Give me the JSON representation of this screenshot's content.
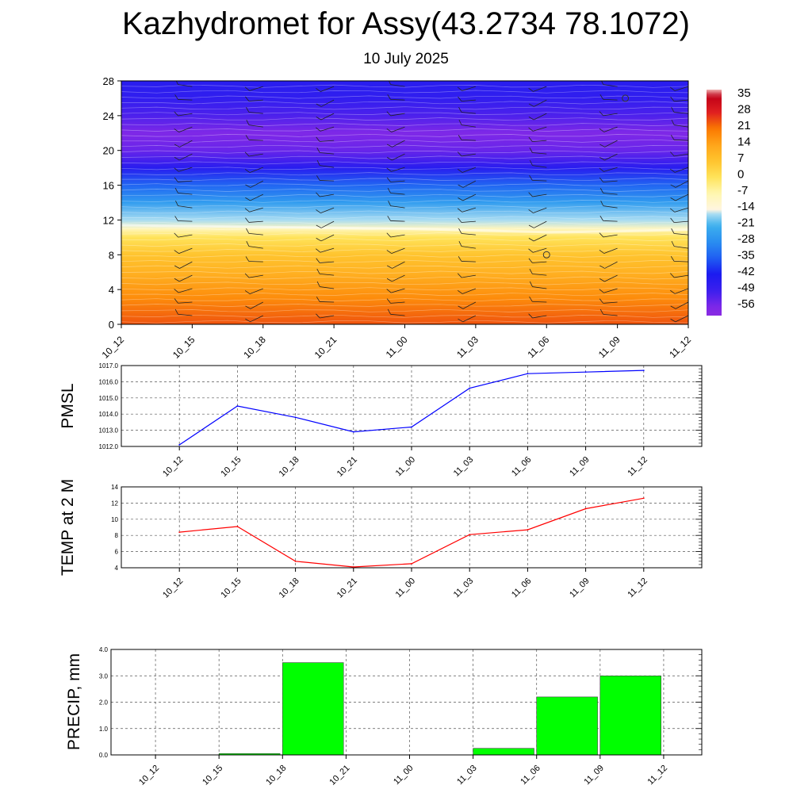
{
  "title": "Kazhydromet for Assy(43.2734 78.1072)",
  "subtitle": "10 July 2025",
  "chart_data": [
    {
      "type": "heatmap",
      "x_ticks": [
        "10_12",
        "10_15",
        "10_18",
        "10_21",
        "11_00",
        "11_03",
        "11_06",
        "11_09",
        "11_12"
      ],
      "y_ticks": [
        "0",
        "4",
        "8",
        "12",
        "16",
        "20",
        "24",
        "28"
      ],
      "ylim": [
        0,
        28
      ],
      "colorbar_labels": [
        "35",
        "28",
        "21",
        "14",
        "7",
        "0",
        "-7",
        "-14",
        "-21",
        "-28",
        "-35",
        "-42",
        "-49",
        "-56"
      ],
      "colorbar_range": [
        -60,
        38
      ],
      "field_profile": [
        {
          "y": 0,
          "v": 24
        },
        {
          "y": 3,
          "v": 18
        },
        {
          "y": 6,
          "v": 11
        },
        {
          "y": 8,
          "v": 7
        },
        {
          "y": 10,
          "v": 0
        },
        {
          "y": 11,
          "v": -9
        },
        {
          "y": 12,
          "v": -16
        },
        {
          "y": 14,
          "v": -25
        },
        {
          "y": 16,
          "v": -34
        },
        {
          "y": 18,
          "v": -45
        },
        {
          "y": 20,
          "v": -54
        },
        {
          "y": 22,
          "v": -57
        },
        {
          "y": 24,
          "v": -51
        },
        {
          "y": 26,
          "v": -47
        },
        {
          "y": 28,
          "v": -45
        }
      ],
      "freezing_level": [
        11.4,
        11.3,
        11.2,
        11.1,
        11.0,
        10.8,
        10.6,
        10.7,
        10.9
      ],
      "grid": false,
      "colors": {
        "cold_top": "#7b27e8",
        "cold": "#1b1bf0",
        "cool": "#3db0ee",
        "pale": "#fff7b0",
        "warm": "#ffa51a",
        "hot": "#fb7a00"
      }
    },
    {
      "type": "line",
      "ylabel": "PMSL",
      "x": [
        "10_12",
        "10_15",
        "10_18",
        "10_21",
        "11_00",
        "11_03",
        "11_06",
        "11_09",
        "11_12"
      ],
      "series": [
        {
          "values": [
            1012.1,
            1014.5,
            1013.8,
            1012.9,
            1013.2,
            1015.6,
            1016.5,
            1016.6,
            1016.7
          ],
          "color": "#0000ff"
        }
      ],
      "ylim": [
        1012.0,
        1017.0
      ],
      "y_ticks": [
        "1012.0",
        "1013.0",
        "1014.0",
        "1015.0",
        "1016.0",
        "1017.0"
      ],
      "grid": true
    },
    {
      "type": "line",
      "ylabel": "TEMP at 2 M",
      "x": [
        "10_12",
        "10_15",
        "10_18",
        "10_21",
        "11_00",
        "11_03",
        "11_06",
        "11_09",
        "11_12"
      ],
      "series": [
        {
          "values": [
            8.4,
            9.1,
            4.8,
            4.1,
            4.5,
            8.1,
            8.7,
            11.3,
            12.6
          ],
          "color": "#ff0000"
        }
      ],
      "ylim": [
        4,
        14
      ],
      "y_ticks": [
        "4",
        "6",
        "8",
        "10",
        "12",
        "14"
      ],
      "grid": true
    },
    {
      "type": "bar",
      "ylabel": "PRECIP, mm",
      "categories": [
        "10_12",
        "10_15",
        "10_18",
        "10_21",
        "11_00",
        "11_03",
        "11_06",
        "11_09",
        "11_12"
      ],
      "values": [
        0.0,
        0.05,
        3.5,
        0.0,
        0.0,
        0.25,
        2.2,
        3.0,
        0.0
      ],
      "ylim": [
        0.0,
        4.0
      ],
      "y_ticks": [
        "0.0",
        "1.0",
        "2.0",
        "3.0",
        "4.0"
      ],
      "bar_color": "#00ff00",
      "grid": true
    }
  ]
}
